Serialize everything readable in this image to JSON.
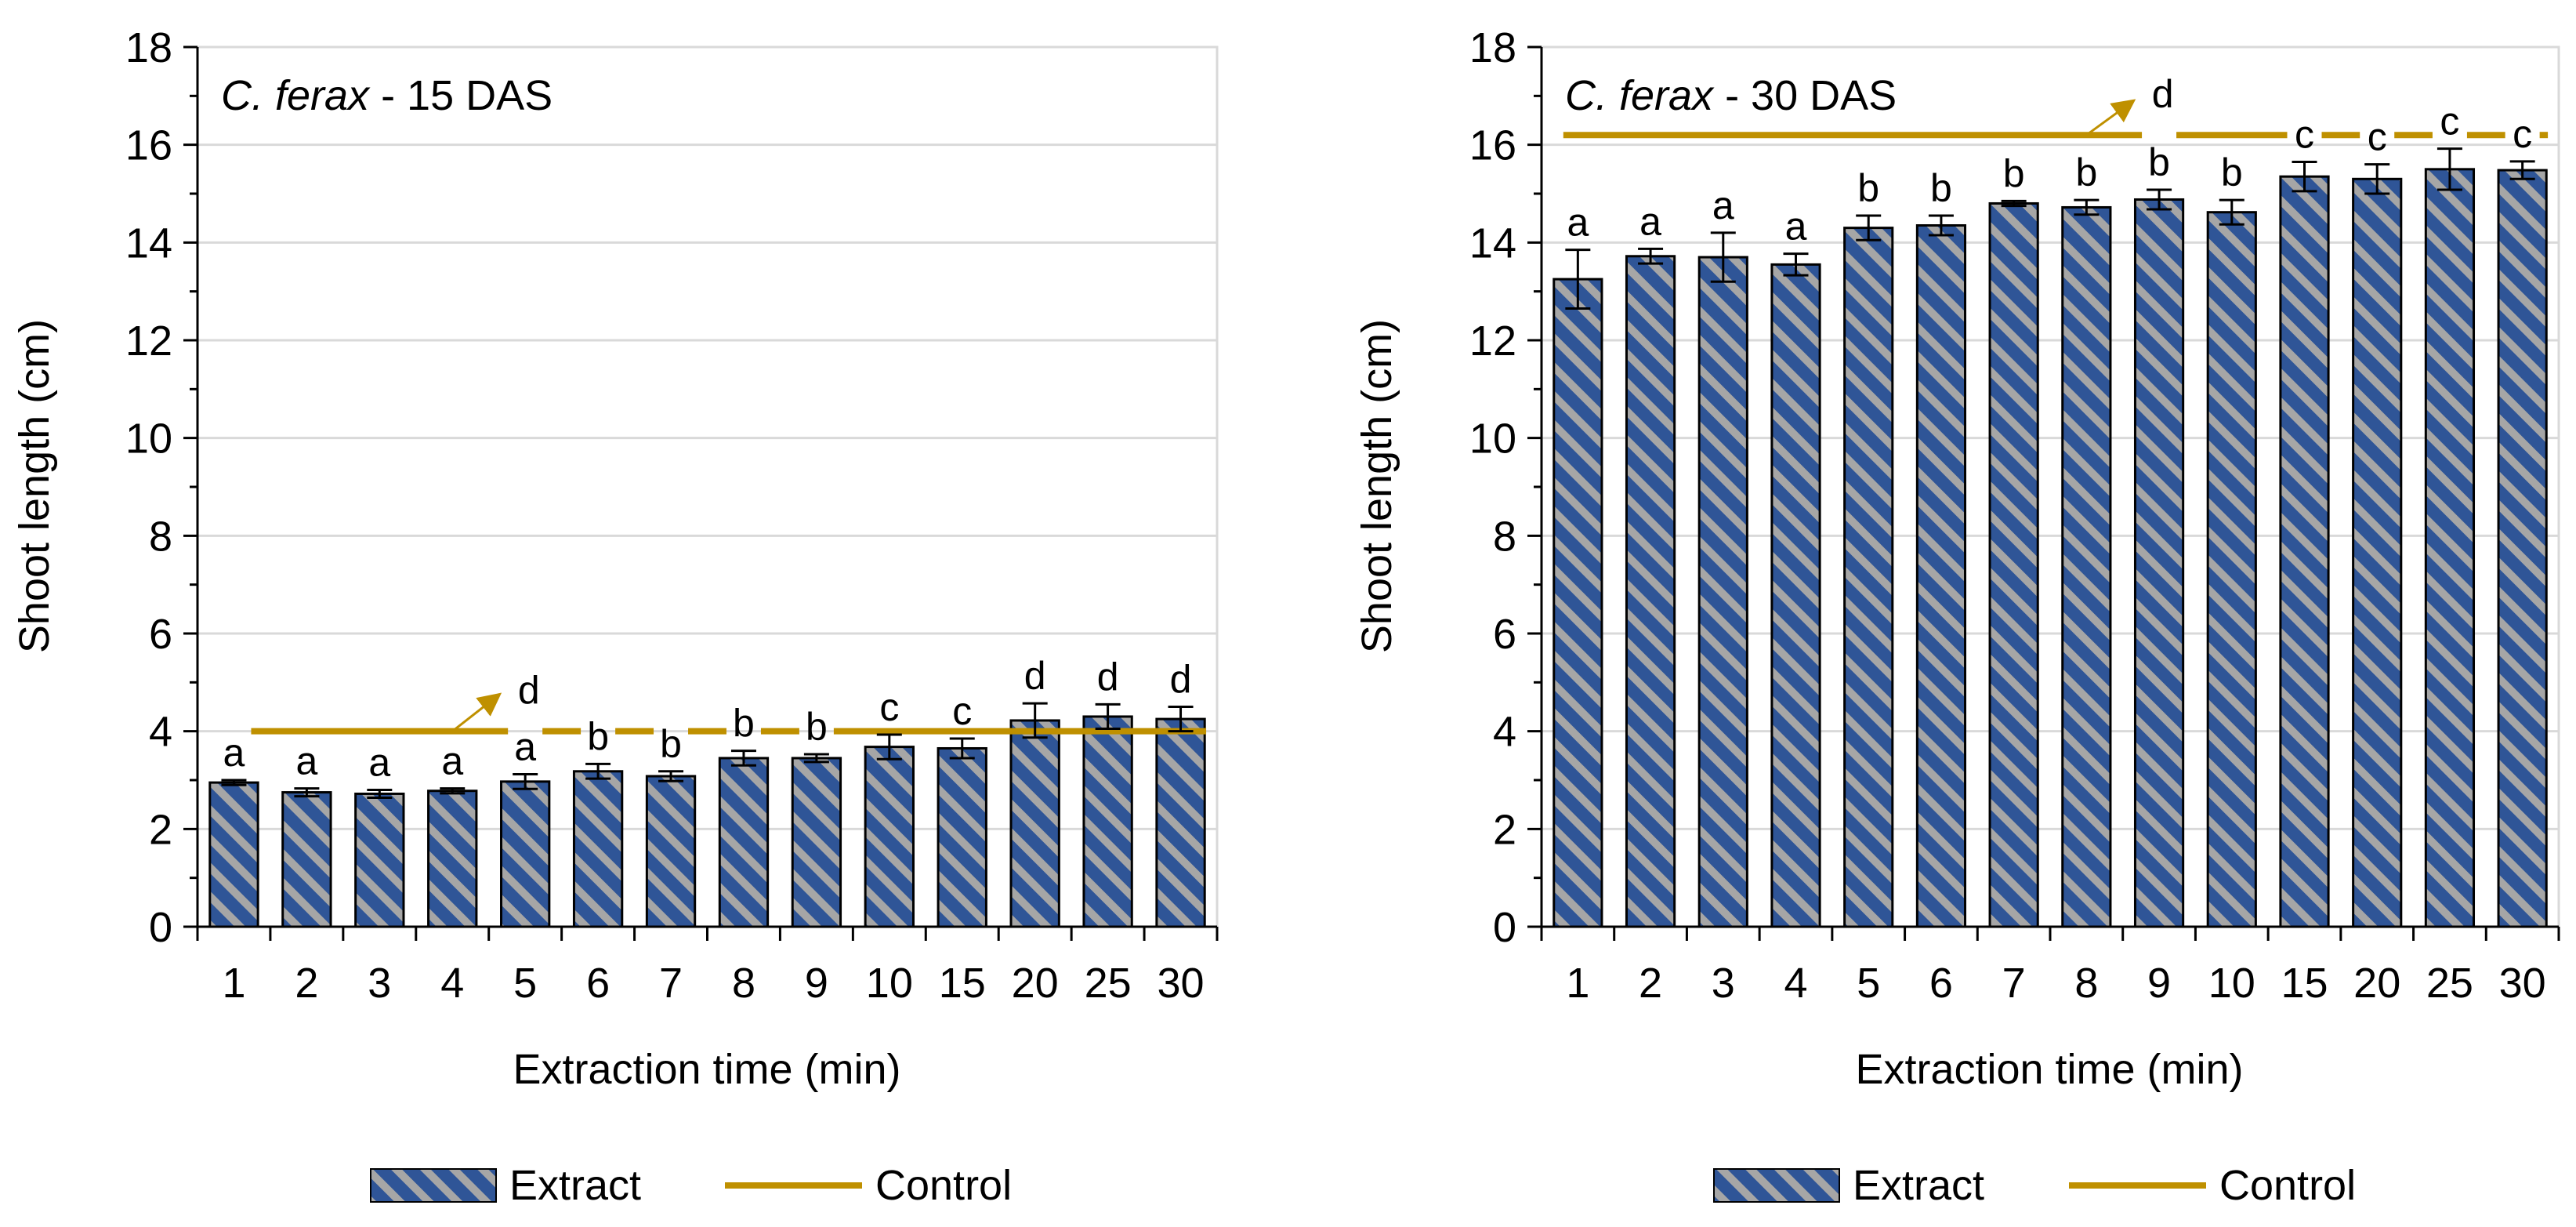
{
  "colors": {
    "bar_fill": "#2F5597",
    "bar_stripe": "#A6A6A6",
    "control_line": "#BF9000",
    "grid": "#D9D9D9",
    "axis": "#000000"
  },
  "chart_data": [
    {
      "type": "bar",
      "title_italic": "C. ferax",
      "title_rest": " - 15 DAS",
      "xlabel": "Extraction time (min)",
      "ylabel": "Shoot length (cm)",
      "ylim": [
        0,
        18
      ],
      "yticks": [
        "0",
        "2",
        "4",
        "6",
        "8",
        "10",
        "12",
        "14",
        "16",
        "18"
      ],
      "categories": [
        "1",
        "2",
        "3",
        "4",
        "5",
        "6",
        "7",
        "8",
        "9",
        "10",
        "15",
        "20",
        "25",
        "30"
      ],
      "grid": true,
      "legend_placement": "bottom",
      "series": [
        {
          "name": "Extract",
          "values": [
            2.95,
            2.75,
            2.72,
            2.78,
            2.97,
            3.18,
            3.08,
            3.45,
            3.45,
            3.68,
            3.65,
            4.22,
            4.3,
            4.25
          ],
          "errors": [
            0.05,
            0.08,
            0.08,
            0.05,
            0.15,
            0.15,
            0.1,
            0.15,
            0.08,
            0.25,
            0.2,
            0.35,
            0.25,
            0.25
          ],
          "letters": [
            "a",
            "a",
            "a",
            "a",
            "a",
            "b",
            "b",
            "b",
            "b",
            "c",
            "c",
            "d",
            "d",
            "d"
          ]
        },
        {
          "name": "Control",
          "value": 4.0
        }
      ],
      "annotation": {
        "text": "d",
        "arrow_from": {
          "x_cat": 3.5,
          "y": 4.0
        },
        "arrow_to": {
          "x_cat": 4.1,
          "y": 4.7
        },
        "text_at": {
          "x_cat": 4.4,
          "y": 4.85
        }
      }
    },
    {
      "type": "bar",
      "title_italic": "C. ferax",
      "title_rest": " - 30 DAS",
      "xlabel": "Extraction time (min)",
      "ylabel": "Shoot length (cm)",
      "ylim": [
        0,
        18
      ],
      "yticks": [
        "0",
        "2",
        "4",
        "6",
        "8",
        "10",
        "12",
        "14",
        "16",
        "18"
      ],
      "categories": [
        "1",
        "2",
        "3",
        "4",
        "5",
        "6",
        "7",
        "8",
        "9",
        "10",
        "15",
        "20",
        "25",
        "30"
      ],
      "grid": true,
      "legend_placement": "bottom",
      "series": [
        {
          "name": "Extract",
          "values": [
            13.25,
            13.72,
            13.7,
            13.55,
            14.3,
            14.35,
            14.8,
            14.72,
            14.88,
            14.62,
            15.35,
            15.3,
            15.5,
            15.48
          ],
          "errors": [
            0.6,
            0.15,
            0.5,
            0.22,
            0.25,
            0.2,
            0.05,
            0.15,
            0.2,
            0.25,
            0.3,
            0.3,
            0.42,
            0.18
          ],
          "letters": [
            "a",
            "a",
            "a",
            "a",
            "b",
            "b",
            "b",
            "b",
            "b",
            "b",
            "c",
            "c",
            "c",
            "c"
          ]
        },
        {
          "name": "Control",
          "value": 16.2
        }
      ],
      "annotation": {
        "text": "d",
        "arrow_from": {
          "x_cat": 7.5,
          "y": 16.2
        },
        "arrow_to": {
          "x_cat": 8.1,
          "y": 16.85
        },
        "text_at": {
          "x_cat": 8.4,
          "y": 17.05
        }
      }
    }
  ]
}
